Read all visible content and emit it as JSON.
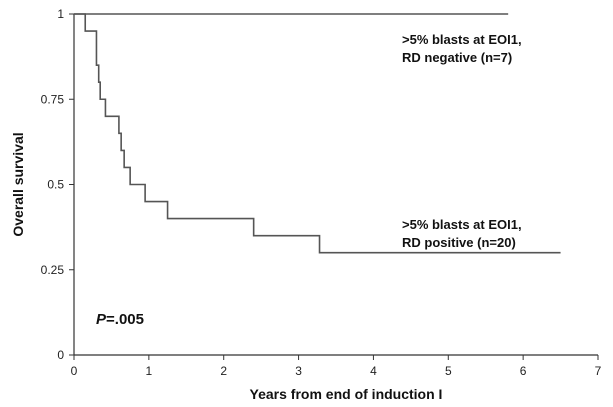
{
  "chart_data": {
    "type": "line",
    "xlabel": "Years from end of induction I",
    "ylabel": "Overall survival",
    "xlim": [
      0,
      7
    ],
    "ylim": [
      0,
      1
    ],
    "x_ticks": [
      "0",
      "1",
      "2",
      "3",
      "4",
      "5",
      "6",
      "7"
    ],
    "y_ticks": [
      "0",
      "0.25",
      "0.5",
      "0.75",
      "1"
    ],
    "grid": false,
    "legend": "none",
    "series": [
      {
        "label_lines": [
          ">5% blasts at EOI1,",
          "RD negative (n=7)"
        ],
        "step": true,
        "x": [
          0,
          5.8
        ],
        "y": [
          1,
          1
        ],
        "color": "#555555"
      },
      {
        "label_lines": [
          ">5% blasts at EOI1,",
          "RD positive (n=20)"
        ],
        "step": true,
        "x": [
          0,
          0.15,
          0.3,
          0.33,
          0.35,
          0.42,
          0.6,
          0.63,
          0.67,
          0.75,
          0.95,
          1.25,
          2.4,
          3.28,
          6.5
        ],
        "y": [
          1,
          0.95,
          0.85,
          0.8,
          0.75,
          0.7,
          0.65,
          0.6,
          0.55,
          0.5,
          0.45,
          0.4,
          0.35,
          0.3,
          0.3
        ],
        "color": "#555555"
      }
    ],
    "annotations": [
      {
        "text_italic": "P",
        "text": "=.005"
      }
    ]
  }
}
